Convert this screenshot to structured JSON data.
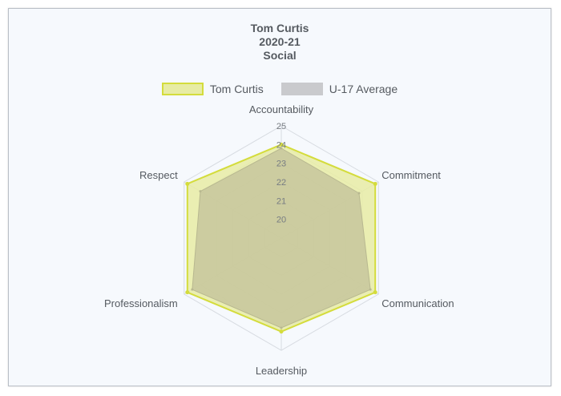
{
  "chart_data": {
    "type": "radar",
    "title": [
      "Tom Curtis",
      "2020-21",
      "Social"
    ],
    "axes": [
      "Accountability",
      "Commitment",
      "Communication",
      "Leadership",
      "Professionalism",
      "Respect"
    ],
    "rlim": [
      19,
      25
    ],
    "ticks": [
      20,
      21,
      22,
      23,
      24,
      25
    ],
    "grid": true,
    "legend_position": "top",
    "series": [
      {
        "name": "Tom Curtis",
        "values": [
          24.0,
          24.8,
          24.8,
          24.0,
          24.8,
          24.8
        ],
        "fill": "#e7eca4",
        "stroke": "#d4dc3c"
      },
      {
        "name": "U-17 Average",
        "values": [
          23.8,
          23.8,
          24.5,
          23.8,
          24.5,
          24.0
        ],
        "fill": "#c2c09a",
        "stroke": "#b8b890",
        "legend_fill": "#c9cacd"
      }
    ]
  }
}
